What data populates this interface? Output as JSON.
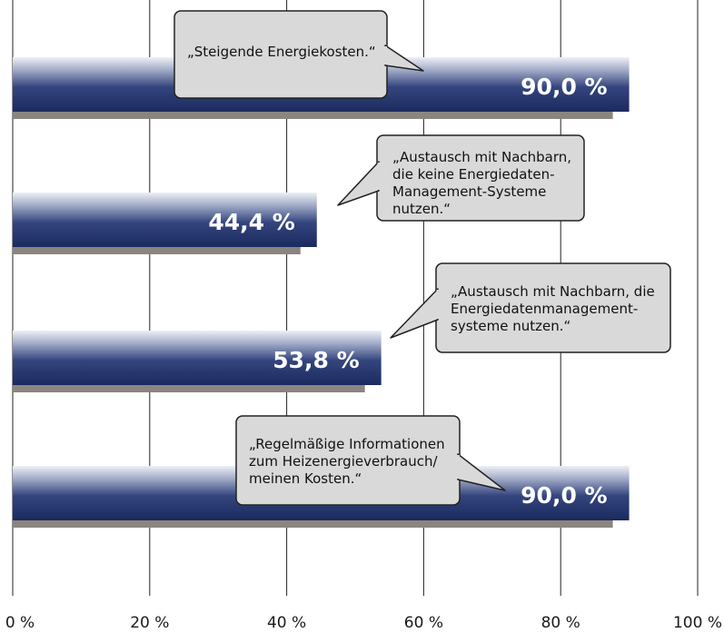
{
  "chart_data": {
    "type": "bar",
    "orientation": "horizontal",
    "x_ticks": [
      "0 %",
      "20 %",
      "40 %",
      "60 %",
      "80 %",
      "100 %"
    ],
    "xlim": [
      0,
      100
    ],
    "grid": true,
    "categories": [
      [
        "„Steigende Energiekosten.“"
      ],
      [
        "„Austausch mit Nachbarn,",
        "die keine Energiedaten-",
        "Management-Systeme",
        "nutzen.“"
      ],
      [
        "„Austausch mit Nachbarn, die",
        "Energiedatenmanagement-",
        "systeme nutzen.“"
      ],
      [
        "„Regelmäßige Informationen",
        "zum Heizenergieverbrauch/",
        "meinen Kosten.“"
      ]
    ],
    "values": [
      90.0,
      44.4,
      53.8,
      90.0
    ],
    "value_labels": [
      "90,0 %",
      "44,4 %",
      "53,8 %",
      "90,0 %"
    ],
    "colors": {
      "bar_dark": "#1e2f66",
      "bar_light": "#c7cde0",
      "shadow": "#8a8580",
      "bubble_fill": "#d9d9d9",
      "bubble_stroke": "#222222",
      "grid": "#222222"
    }
  }
}
